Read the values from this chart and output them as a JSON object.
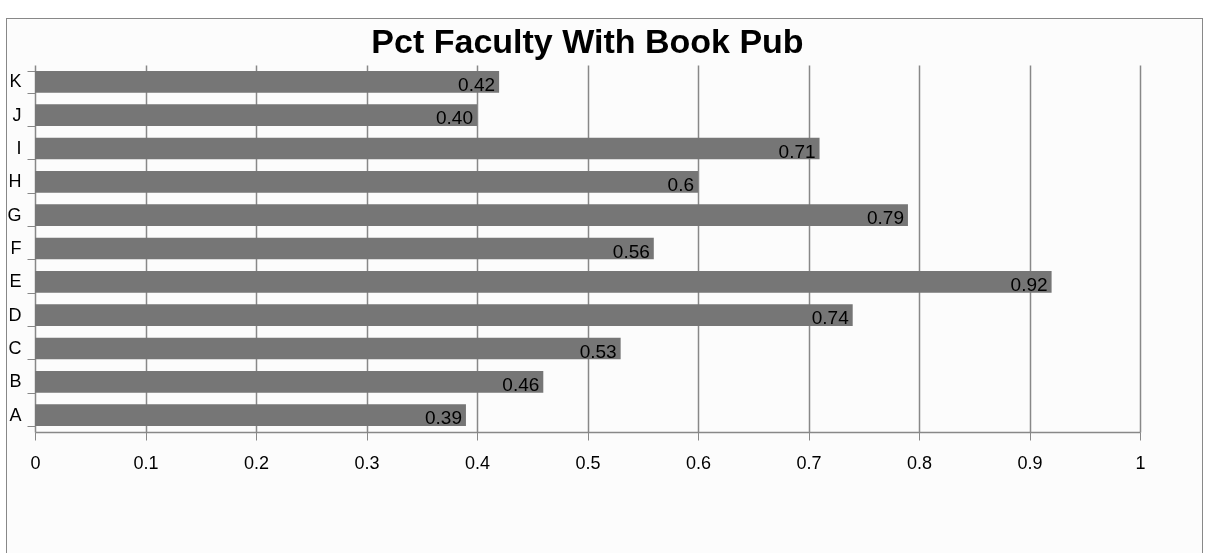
{
  "chart_data": {
    "type": "bar",
    "orientation": "horizontal",
    "title": "Pct Faculty With Book Pub",
    "categories": [
      "K",
      "J",
      "I",
      "H",
      "G",
      "F",
      "E",
      "D",
      "C",
      "B",
      "A"
    ],
    "values": [
      0.42,
      0.4,
      0.71,
      0.6,
      0.79,
      0.56,
      0.92,
      0.74,
      0.53,
      0.46,
      0.39
    ],
    "value_labels": [
      "0.42",
      "0.40",
      "0.71",
      "0.6",
      "0.79",
      "0.56",
      "0.92",
      "0.74",
      "0.53",
      "0.46",
      "0.39"
    ],
    "color": "#767676",
    "xlim": [
      0,
      1
    ],
    "xticks": [
      0,
      0.1,
      0.2,
      0.3,
      0.4,
      0.5,
      0.6,
      0.7,
      0.8,
      0.9,
      1
    ],
    "grid": "x"
  }
}
